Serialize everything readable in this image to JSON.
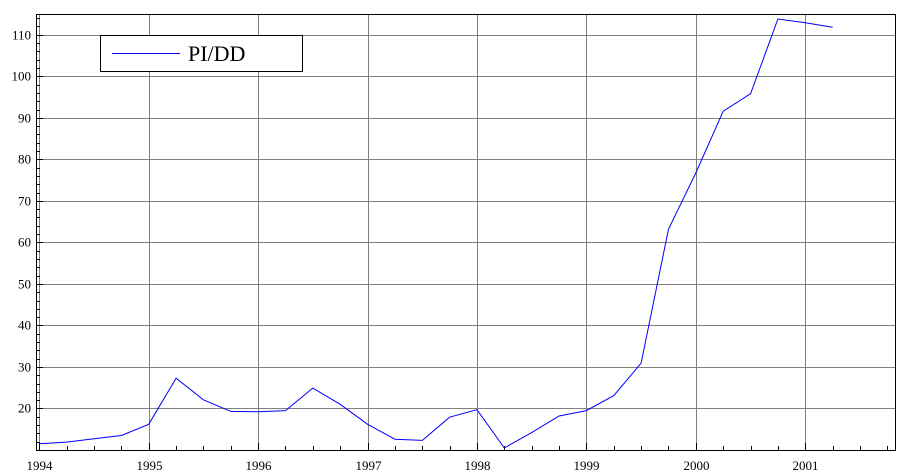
{
  "chart_data": {
    "type": "line",
    "title": "",
    "xlabel": "",
    "ylabel": "",
    "xlim": [
      1993.97,
      2001.82
    ],
    "ylim": [
      10,
      115
    ],
    "x_ticks": [
      1994,
      1995,
      1996,
      1997,
      1998,
      1999,
      2000,
      2001
    ],
    "y_ticks": [
      20,
      30,
      40,
      50,
      60,
      70,
      80,
      90,
      100,
      110
    ],
    "grid": true,
    "legend": {
      "position": "top-left",
      "entries": [
        "PI/DD"
      ]
    },
    "series": [
      {
        "name": "PI/DD",
        "color": "#0000ff",
        "x": [
          1994.0,
          1994.25,
          1994.5,
          1994.75,
          1995.0,
          1995.25,
          1995.5,
          1995.75,
          1996.0,
          1996.25,
          1996.5,
          1996.75,
          1997.0,
          1997.25,
          1997.5,
          1997.75,
          1998.0,
          1998.25,
          1998.5,
          1998.75,
          1999.0,
          1999.25,
          1999.5,
          1999.75,
          2000.0,
          2000.25,
          2000.5,
          2000.75,
          2001.0,
          2001.25
        ],
        "values": [
          11.5,
          11.9,
          12.7,
          13.5,
          16.2,
          27.3,
          22.1,
          19.3,
          19.2,
          19.5,
          24.9,
          21.0,
          16.2,
          12.6,
          12.3,
          17.9,
          19.7,
          10.5,
          14.2,
          18.2,
          19.5,
          23.1,
          30.9,
          63.2,
          76.7,
          91.6,
          95.8,
          113.8,
          112.9,
          111.8
        ]
      }
    ]
  }
}
